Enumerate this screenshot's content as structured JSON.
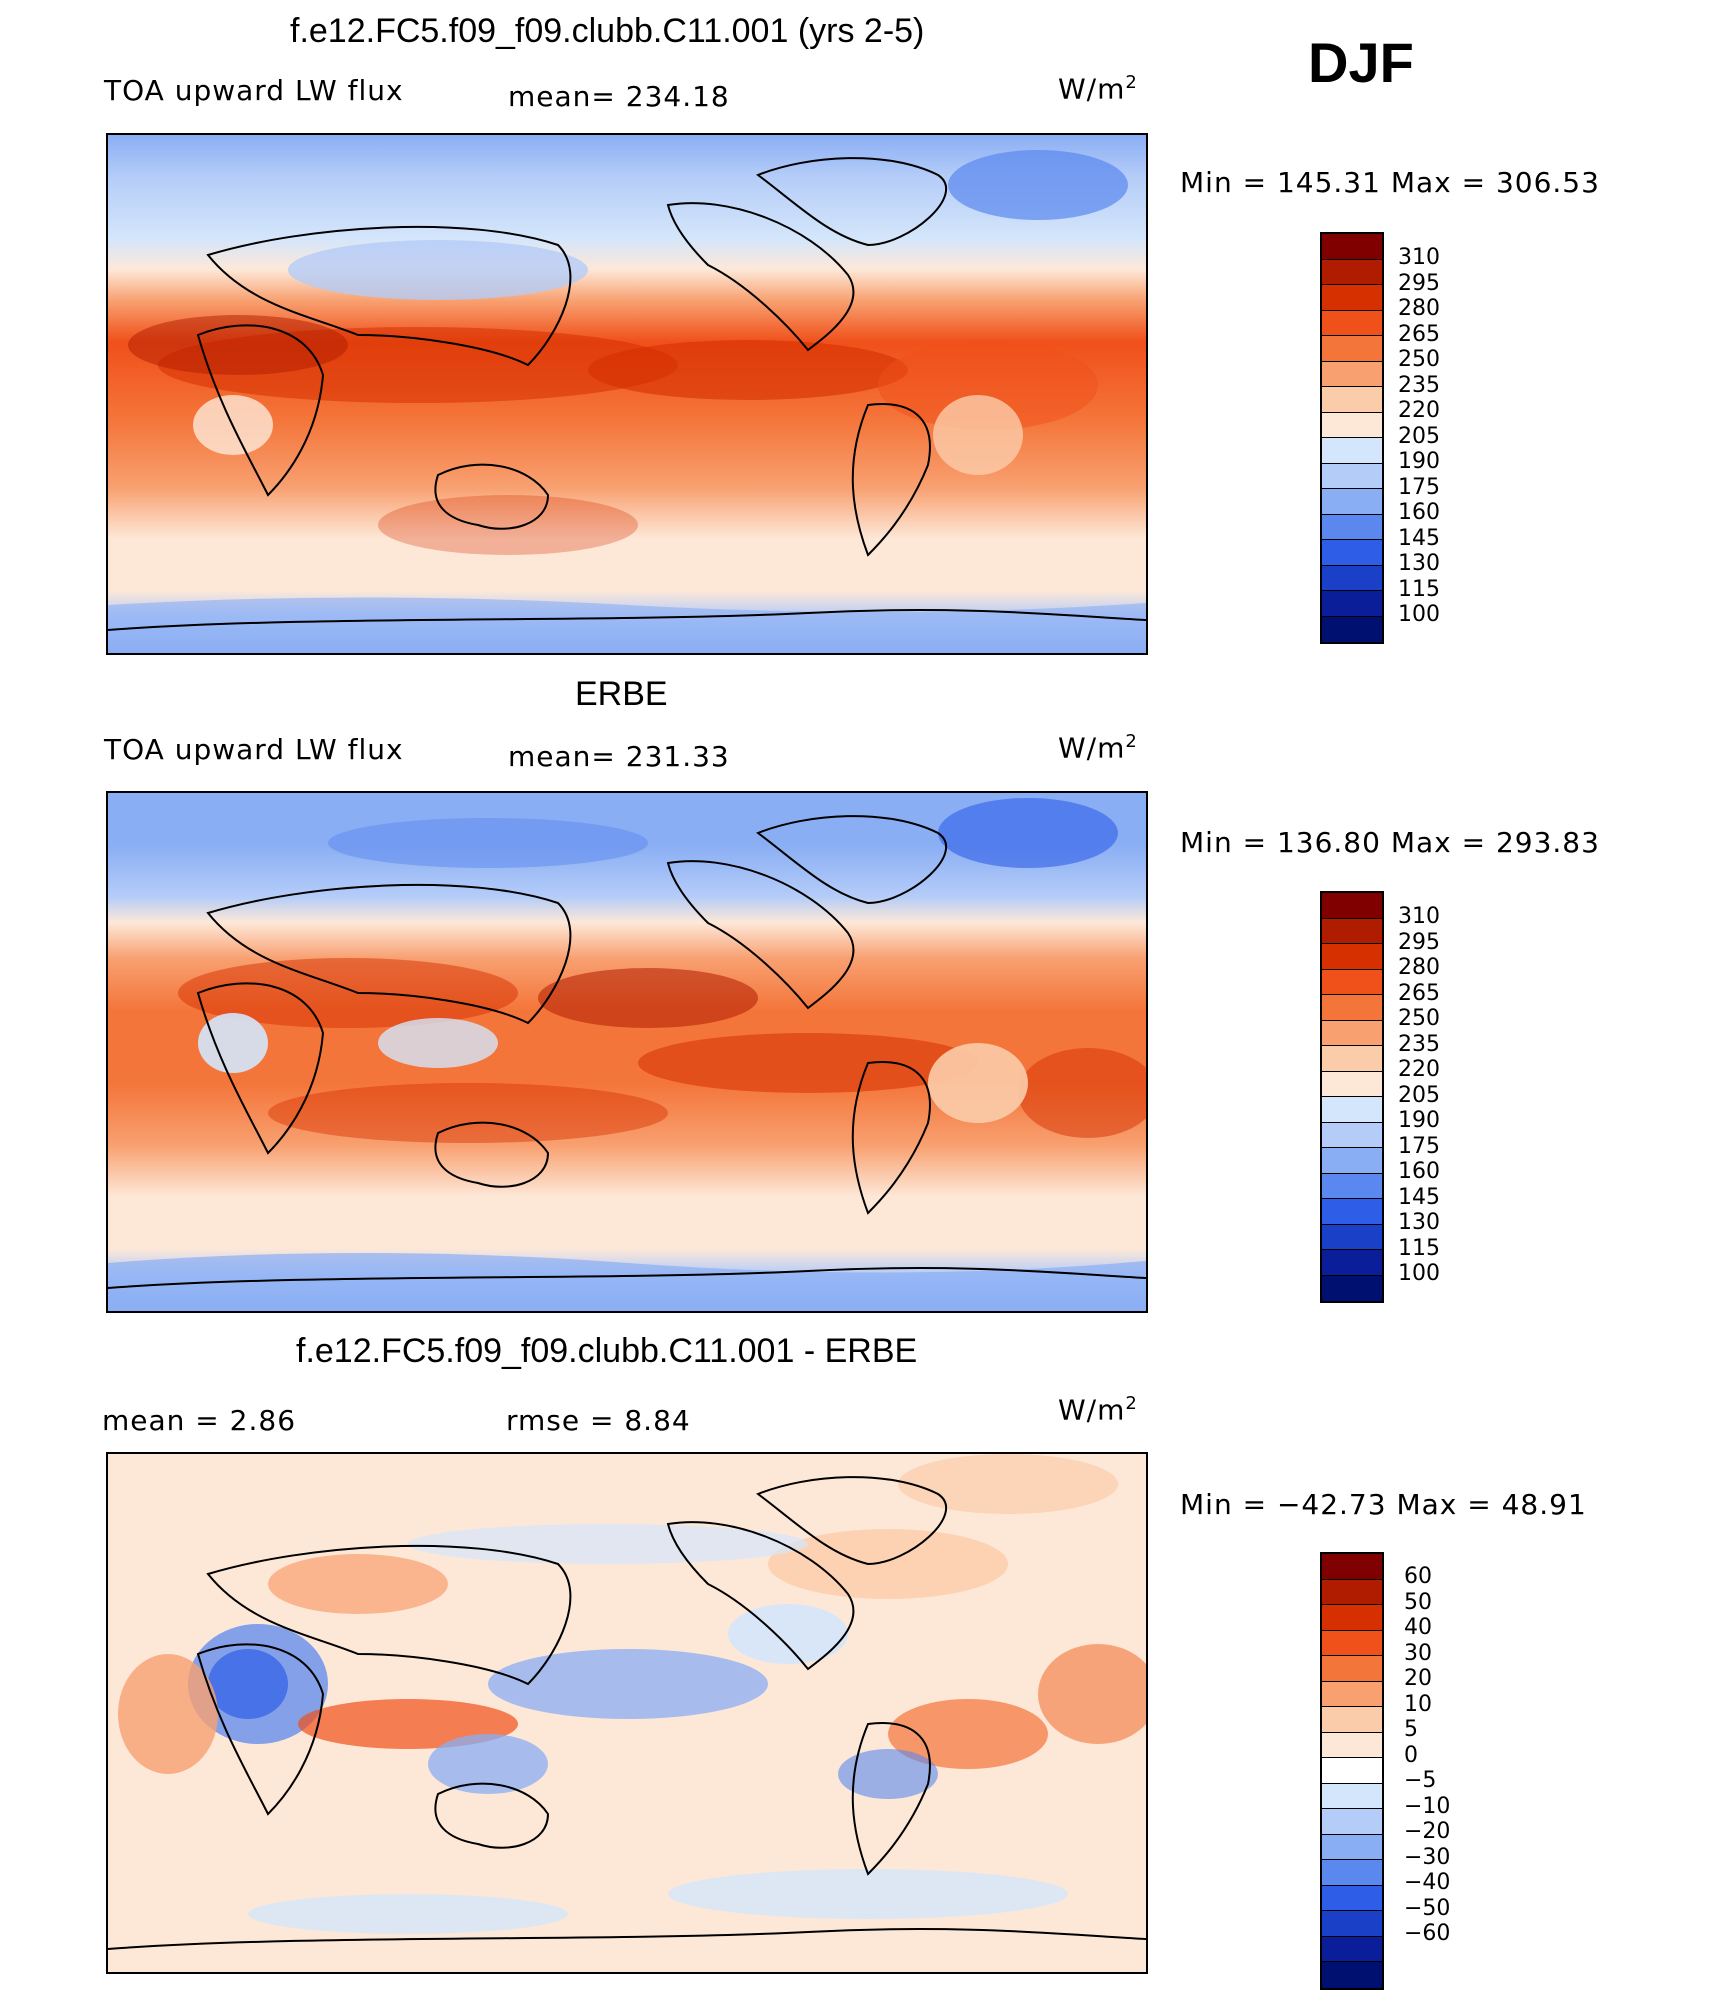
{
  "season": "DJF",
  "units": "W/m",
  "units_exp": "2",
  "panels": [
    {
      "title": "f.e12.FC5.f09_f09.clubb.C11.001 (yrs 2-5)",
      "left_label": "TOA upward LW flux",
      "mid_label": "mean=  234.18",
      "minmax": "Min  =  145.31  Max  =  306.53"
    },
    {
      "title": "ERBE",
      "left_label": "TOA upward LW flux",
      "mid_label": "mean=  231.33",
      "minmax": "Min  =  136.80  Max  =  293.83"
    },
    {
      "title": "f.e12.FC5.f09_f09.clubb.C11.001 - ERBE",
      "left_label": "mean  =      2.86",
      "mid_label": "rmse  =      8.84",
      "minmax": "Min  =  −42.73  Max  =    48.91"
    }
  ],
  "chart_data": [
    {
      "type": "heatmap",
      "title": "f.e12.FC5.f09_f09.clubb.C11.001 (yrs 2-5)",
      "variable": "TOA upward LW flux",
      "mean": 234.18,
      "min": 145.31,
      "max": 306.53,
      "colorbar_levels": [
        "310",
        "295",
        "280",
        "265",
        "250",
        "235",
        "220",
        "205",
        "190",
        "175",
        "160",
        "145",
        "130",
        "115",
        "100"
      ]
    },
    {
      "type": "heatmap",
      "title": "ERBE",
      "variable": "TOA upward LW flux",
      "mean": 231.33,
      "min": 136.8,
      "max": 293.83,
      "colorbar_levels": [
        "310",
        "295",
        "280",
        "265",
        "250",
        "235",
        "220",
        "205",
        "190",
        "175",
        "160",
        "145",
        "130",
        "115",
        "100"
      ]
    },
    {
      "type": "heatmap",
      "title": "f.e12.FC5.f09_f09.clubb.C11.001 - ERBE",
      "mean": 2.86,
      "rmse": 8.84,
      "min": -42.73,
      "max": 48.91,
      "colorbar_levels": [
        "60",
        "50",
        "40",
        "30",
        "20",
        "10",
        "5",
        "0",
        "−5",
        "−10",
        "−20",
        "−30",
        "−40",
        "−50",
        "−60"
      ]
    }
  ],
  "colors": {
    "abs_scale": [
      "#800000",
      "#b01c00",
      "#d63000",
      "#f0501a",
      "#f4753a",
      "#f8a070",
      "#fbccaa",
      "#fde8d8",
      "#d4e6fb",
      "#b4ccf8",
      "#8aaef4",
      "#5a88ee",
      "#2e5ee8",
      "#1a40c8",
      "#0a1e9a",
      "#001070"
    ],
    "diff_scale": [
      "#800000",
      "#b01c00",
      "#d63000",
      "#f0501a",
      "#f4753a",
      "#f8a070",
      "#fbccaa",
      "#fde8d8",
      "#ffffff",
      "#d4e6fb",
      "#b4ccf8",
      "#8aaef4",
      "#5a88ee",
      "#2e5ee8",
      "#1a40c8",
      "#0a1e9a",
      "#001070"
    ]
  }
}
